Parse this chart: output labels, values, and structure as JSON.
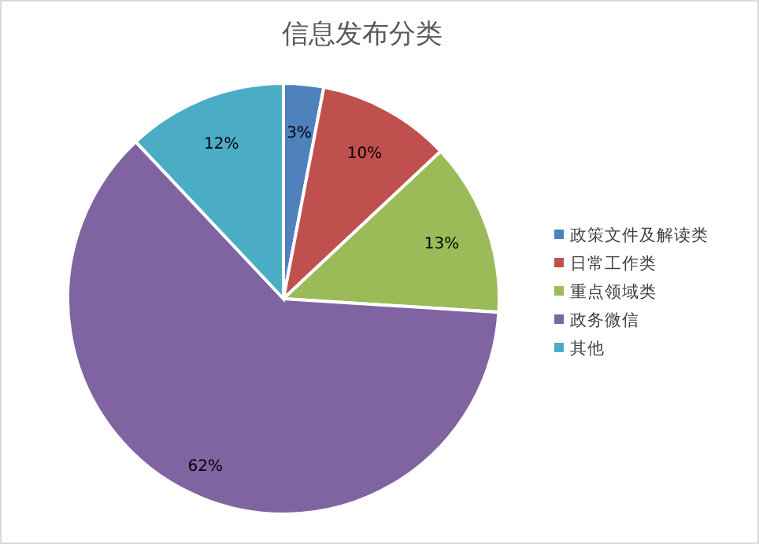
{
  "chart_data": {
    "type": "pie",
    "title": "信息发布分类",
    "categories": [
      "政策文件及解读类",
      "日常工作类",
      "重点领域类",
      "政务微信",
      "其他"
    ],
    "values": [
      3,
      10,
      13,
      62,
      12
    ],
    "colors": [
      "#4f81bd",
      "#c0504d",
      "#9bbb59",
      "#8064a2",
      "#4bacc6"
    ],
    "value_labels": [
      "3%",
      "10%",
      "13%",
      "62%",
      "12%"
    ],
    "legend": "right"
  }
}
